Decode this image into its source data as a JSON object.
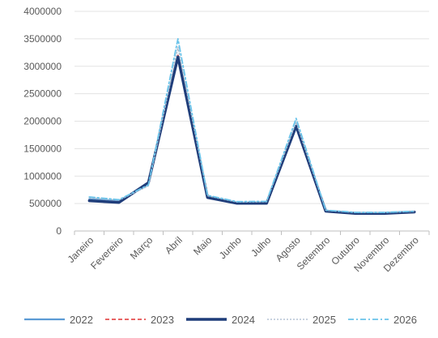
{
  "chart_data": {
    "type": "line",
    "categories": [
      "Janeiro",
      "Fevereiro",
      "Março",
      "Abril",
      "Maio",
      "Junho",
      "Julho",
      "Agosto",
      "Setembro",
      "Outubro",
      "Novembro",
      "Dezembro"
    ],
    "ylim": [
      0,
      4000000
    ],
    "yticks": [
      "0",
      "500000",
      "1000000",
      "1500000",
      "2000000",
      "2500000",
      "3000000",
      "3500000",
      "4000000"
    ],
    "grid": true,
    "legend_position": "bottom",
    "series": [
      {
        "name": "2022",
        "color": "#5b9bd5",
        "dash": "solid",
        "values": [
          580000,
          545000,
          860000,
          3150000,
          620000,
          510000,
          515000,
          1900000,
          370000,
          330000,
          330000,
          350000
        ]
      },
      {
        "name": "2023",
        "color": "#e03030",
        "dash": "dashed",
        "values": [
          560000,
          530000,
          870000,
          3200000,
          600000,
          500000,
          510000,
          1920000,
          360000,
          325000,
          325000,
          350000
        ]
      },
      {
        "name": "2024",
        "color": "#1f3d7a",
        "dash": "solid-thick",
        "values": [
          550000,
          520000,
          880000,
          3170000,
          610000,
          505000,
          505000,
          1910000,
          360000,
          320000,
          320000,
          345000
        ]
      },
      {
        "name": "2025",
        "color": "#a8b8cc",
        "dash": "dotted",
        "values": [
          600000,
          560000,
          820000,
          3350000,
          640000,
          525000,
          530000,
          1980000,
          375000,
          335000,
          335000,
          355000
        ]
      },
      {
        "name": "2026",
        "color": "#69c3ea",
        "dash": "dash-dot",
        "values": [
          620000,
          570000,
          840000,
          3500000,
          650000,
          535000,
          540000,
          2050000,
          380000,
          340000,
          340000,
          360000
        ]
      }
    ]
  }
}
